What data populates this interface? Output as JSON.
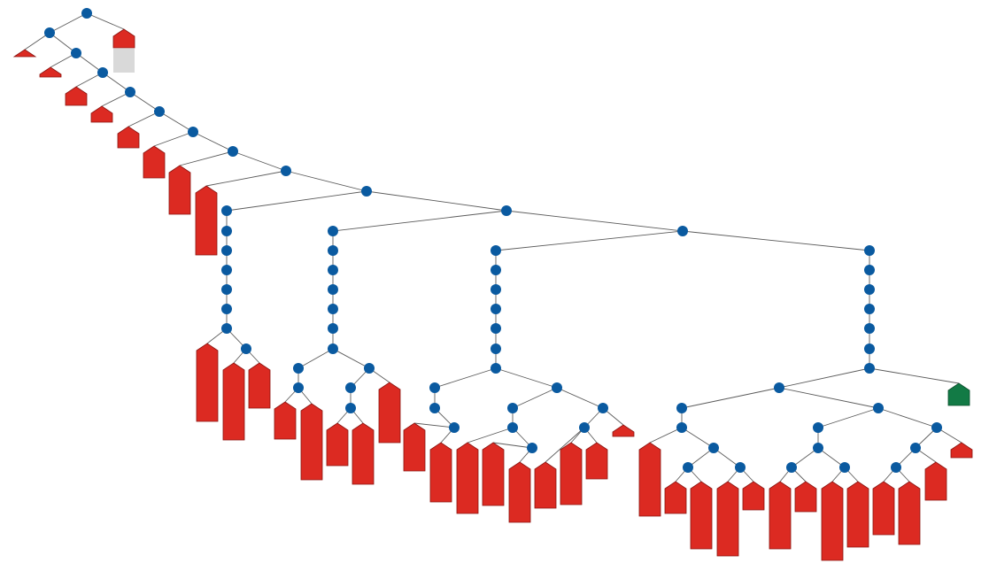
{
  "colors": {
    "node": "#0a5aa0",
    "leaf": "#dc2a22",
    "leaf_border": "#8a1410",
    "highlight_leaf": "#127a45",
    "edge": "#5b5b5b",
    "placeholder": "#d9d9d9"
  },
  "tree": {
    "leaf_count": 55,
    "highlighted_leaves": 1,
    "text_labels": []
  }
}
